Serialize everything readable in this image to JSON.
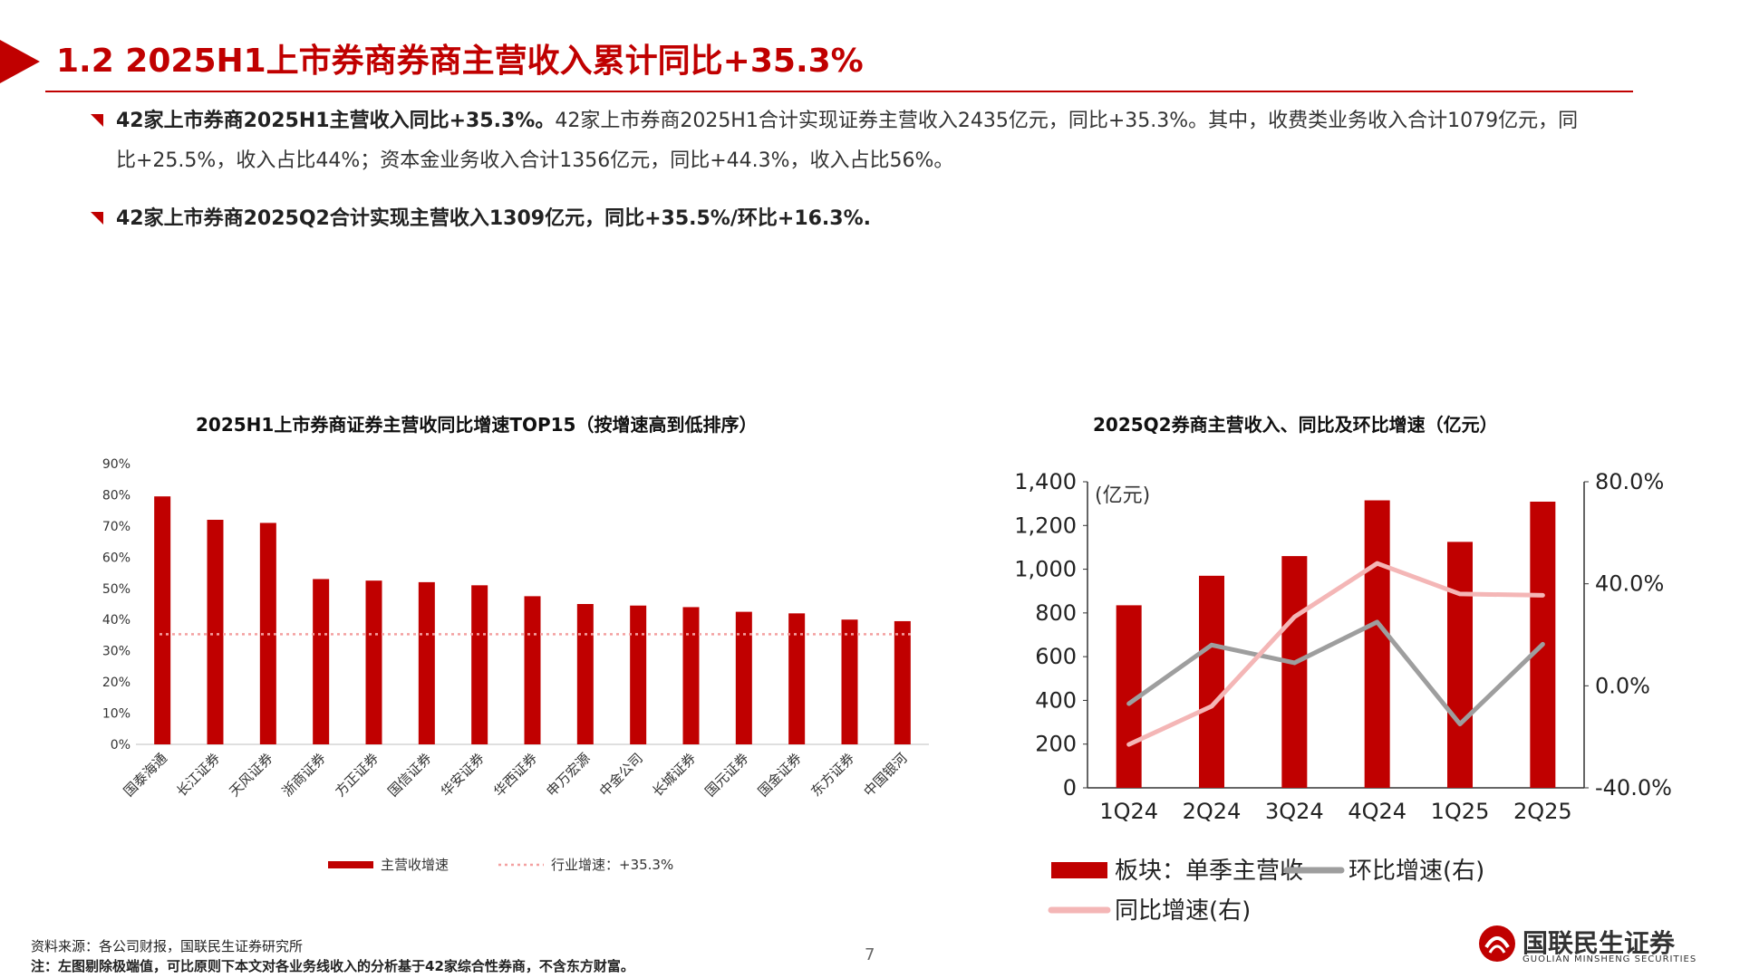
{
  "page": {
    "title": "1.2 2025H1上市券商券商主营收入累计同比+35.3%",
    "bullets": [
      {
        "lead": "42家上市券商2025H1主营收入同比+35.3%。",
        "body": "42家上市券商2025H1合计实现证券主营收入2435亿元，同比+35.3%。其中，收费类业务收入合计1079亿元，同比+25.5%，收入占比44%；资本金业务收入合计1356亿元，同比+44.3%，收入占比56%。"
      },
      {
        "lead": "42家上市券商2025Q2合计实现主营收入1309亿元，同比+35.5%/环比+16.3%.",
        "body": ""
      }
    ],
    "source_note": "资料来源：各公司财报，国联民生证券研究所",
    "footnote": "注：左图剔除极端值，可比原则下本文对各业务线收入的分析基于42家综合性券商，不含东方财富。",
    "page_number": "7",
    "logo": {
      "cn": "国联民生证券",
      "en": "GUOLIAN MINSHENG SECURITIES"
    },
    "accent_color": "#c00000"
  },
  "chart_data": [
    {
      "type": "bar",
      "title": "2025H1上市券商证券主营收同比增速TOP15（按增速高到低排序）",
      "categories": [
        "国泰海通",
        "长江证券",
        "天风证券",
        "浙商证券",
        "方正证券",
        "国信证券",
        "华安证券",
        "华西证券",
        "申万宏源",
        "中金公司",
        "长城证券",
        "国元证券",
        "国金证券",
        "东方证券",
        "中国银河"
      ],
      "series": [
        {
          "name": "主营收增速",
          "type": "bar",
          "color": "#c00000",
          "values": [
            79.5,
            72,
            71,
            53,
            52.5,
            52,
            51,
            47.5,
            45,
            44.5,
            44,
            42.5,
            42,
            40,
            39.5
          ]
        }
      ],
      "reference_line": {
        "name": "行业增速：+35.3%",
        "value": 35.3,
        "color": "#f4a0a0",
        "style": "dotted"
      },
      "y_ticks": [
        "0%",
        "10%",
        "20%",
        "30%",
        "40%",
        "50%",
        "60%",
        "70%",
        "80%",
        "90%"
      ],
      "ylim": [
        0,
        90
      ],
      "legend": "bottom"
    },
    {
      "type": "bar+line",
      "title": "2025Q2券商主营收入、同比及环比增速（亿元）",
      "categories": [
        "1Q24",
        "2Q24",
        "3Q24",
        "4Q24",
        "1Q25",
        "2Q25"
      ],
      "y_unit": "(亿元)",
      "series": [
        {
          "name": "板块：单季主营收",
          "type": "bar",
          "axis": "left",
          "color": "#c00000",
          "values": [
            835,
            970,
            1060,
            1315,
            1125,
            1309
          ]
        },
        {
          "name": "环比增速(右)",
          "type": "line",
          "axis": "right",
          "color": "#9e9e9e",
          "values": [
            -7,
            16,
            9,
            25,
            -15,
            16.3
          ]
        },
        {
          "name": "同比增速(右)",
          "type": "line",
          "axis": "right",
          "color": "#f4b6b6",
          "values": [
            -23,
            -8,
            27,
            48,
            36,
            35.5
          ]
        }
      ],
      "y_left_ticks": [
        "0",
        "200",
        "400",
        "600",
        "800",
        "1,000",
        "1,200",
        "1,400"
      ],
      "y_left_lim": [
        0,
        1400
      ],
      "y_right_ticks": [
        "-40.0%",
        "0.0%",
        "40.0%",
        "80.0%"
      ],
      "y_right_lim": [
        -40,
        80
      ],
      "legend": "bottom"
    }
  ]
}
